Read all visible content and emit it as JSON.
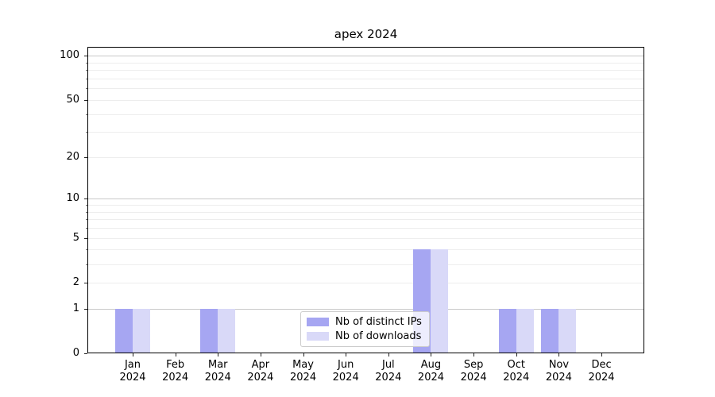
{
  "chart_data": {
    "type": "bar",
    "title": "apex 2024",
    "categories": [
      "Jan",
      "Feb",
      "Mar",
      "Apr",
      "May",
      "Jun",
      "Jul",
      "Aug",
      "Sep",
      "Oct",
      "Nov",
      "Dec"
    ],
    "year_label": "2024",
    "series": [
      {
        "name": "Nb of distinct IPs",
        "color": "#a6a6f2",
        "values": [
          1,
          0,
          1,
          0,
          0,
          0,
          0,
          4,
          0,
          1,
          1,
          0
        ]
      },
      {
        "name": "Nb of downloads",
        "color": "#d9d9f8",
        "values": [
          1,
          0,
          1,
          0,
          0,
          0,
          0,
          4,
          0,
          1,
          1,
          0
        ]
      }
    ],
    "y_axis": {
      "scale": "log1p",
      "ticks": [
        0,
        1,
        2,
        5,
        10,
        20,
        50,
        100
      ],
      "minor_ticks": [
        3,
        4,
        6,
        7,
        8,
        9,
        30,
        40,
        60,
        70,
        80,
        90
      ],
      "major_grid_at": [
        1,
        10,
        100
      ],
      "max_value": 116
    },
    "legend_position": "lower center",
    "grid": true,
    "colors": {
      "grid_major": "#c9c9c9",
      "grid_minor": "#ededed",
      "axis": "#000000"
    }
  }
}
